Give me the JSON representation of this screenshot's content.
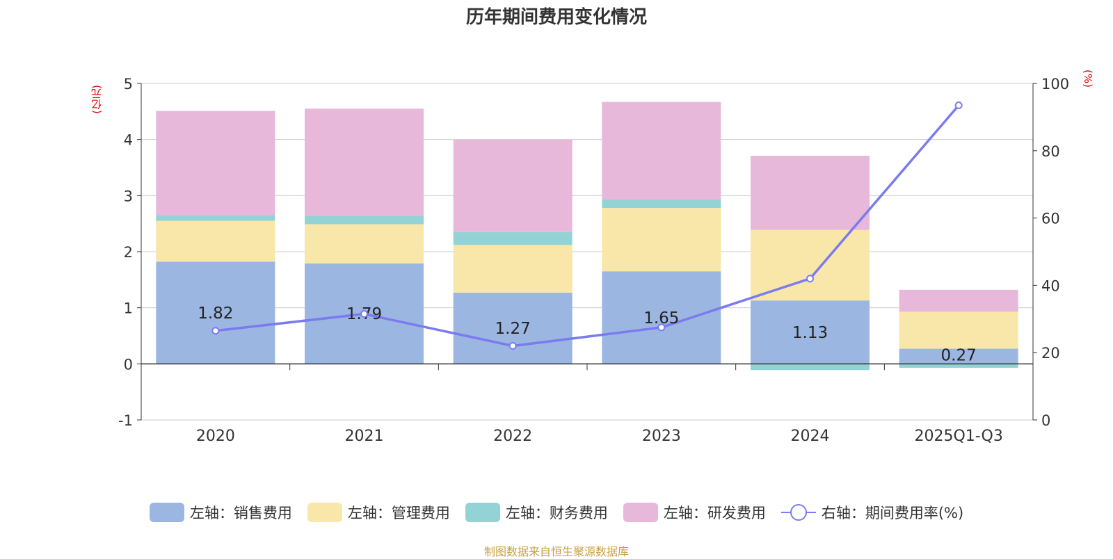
{
  "title": "历年期间费用变化情况",
  "units": {
    "left": "(亿元)",
    "right": "(%)"
  },
  "source": "制图数据来自恒生聚源数据库",
  "colors": {
    "sales": "#9bb7e1",
    "admin": "#f8e7a8",
    "finance": "#94d3d5",
    "rd": "#e7b8d9",
    "rate": "#7b7bef",
    "grid": "#cccccc",
    "axis": "#333333",
    "label": "#222222"
  },
  "legend": [
    {
      "key": "sales",
      "label": "左轴：销售费用",
      "kind": "bar"
    },
    {
      "key": "admin",
      "label": "左轴：管理费用",
      "kind": "bar"
    },
    {
      "key": "finance",
      "label": "左轴：财务费用",
      "kind": "bar"
    },
    {
      "key": "rd",
      "label": "左轴：研发费用",
      "kind": "bar"
    },
    {
      "key": "rate",
      "label": "右轴：期间费用率(%)",
      "kind": "line"
    }
  ],
  "chart_data": {
    "type": "bar",
    "stacked": true,
    "categories": [
      "2020",
      "2021",
      "2022",
      "2023",
      "2024",
      "2025Q1-Q3"
    ],
    "series": [
      {
        "key": "sales",
        "name": "左轴：销售费用",
        "axis": "left",
        "values": [
          1.82,
          1.79,
          1.27,
          1.65,
          1.13,
          0.27
        ],
        "show_labels": true
      },
      {
        "key": "admin",
        "name": "左轴：管理费用",
        "axis": "left",
        "values": [
          0.73,
          0.7,
          0.85,
          1.13,
          1.26,
          0.66
        ]
      },
      {
        "key": "finance",
        "name": "左轴：财务费用",
        "axis": "left",
        "values": [
          0.1,
          0.15,
          0.23,
          0.15,
          -0.11,
          -0.07
        ]
      },
      {
        "key": "rd",
        "name": "左轴：研发费用",
        "axis": "left",
        "values": [
          1.86,
          1.91,
          1.65,
          1.74,
          1.32,
          0.39
        ]
      },
      {
        "key": "rate",
        "name": "右轴：期间费用率(%)",
        "axis": "right",
        "type": "line",
        "values": [
          26.5,
          31.5,
          22.0,
          27.5,
          42.0,
          93.5
        ]
      }
    ],
    "y_left": {
      "min": -1,
      "max": 5,
      "ticks": [
        -1,
        0,
        1,
        2,
        3,
        4,
        5
      ]
    },
    "y_right": {
      "min": 0,
      "max": 100,
      "ticks": [
        0,
        20,
        40,
        60,
        80,
        100
      ]
    },
    "legend_position": "bottom"
  }
}
